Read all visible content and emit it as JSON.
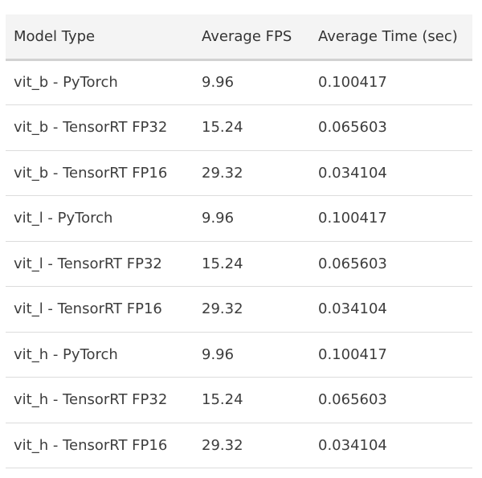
{
  "table": {
    "headers": [
      "Model Type",
      "Average FPS",
      "Average Time (sec)"
    ],
    "rows": [
      [
        "vit_b - PyTorch",
        "9.96",
        "0.100417"
      ],
      [
        "vit_b - TensorRT FP32",
        "15.24",
        "0.065603"
      ],
      [
        "vit_b - TensorRT FP16",
        "29.32",
        "0.034104"
      ],
      [
        "vit_l - PyTorch",
        "9.96",
        "0.100417"
      ],
      [
        "vit_l - TensorRT FP32",
        "15.24",
        "0.065603"
      ],
      [
        "vit_l - TensorRT FP16",
        "29.32",
        "0.034104"
      ],
      [
        "vit_h - PyTorch",
        "9.96",
        "0.100417"
      ],
      [
        "vit_h - TensorRT FP32",
        "15.24",
        "0.065603"
      ],
      [
        "vit_h - TensorRT FP16",
        "29.32",
        "0.034104"
      ]
    ]
  }
}
